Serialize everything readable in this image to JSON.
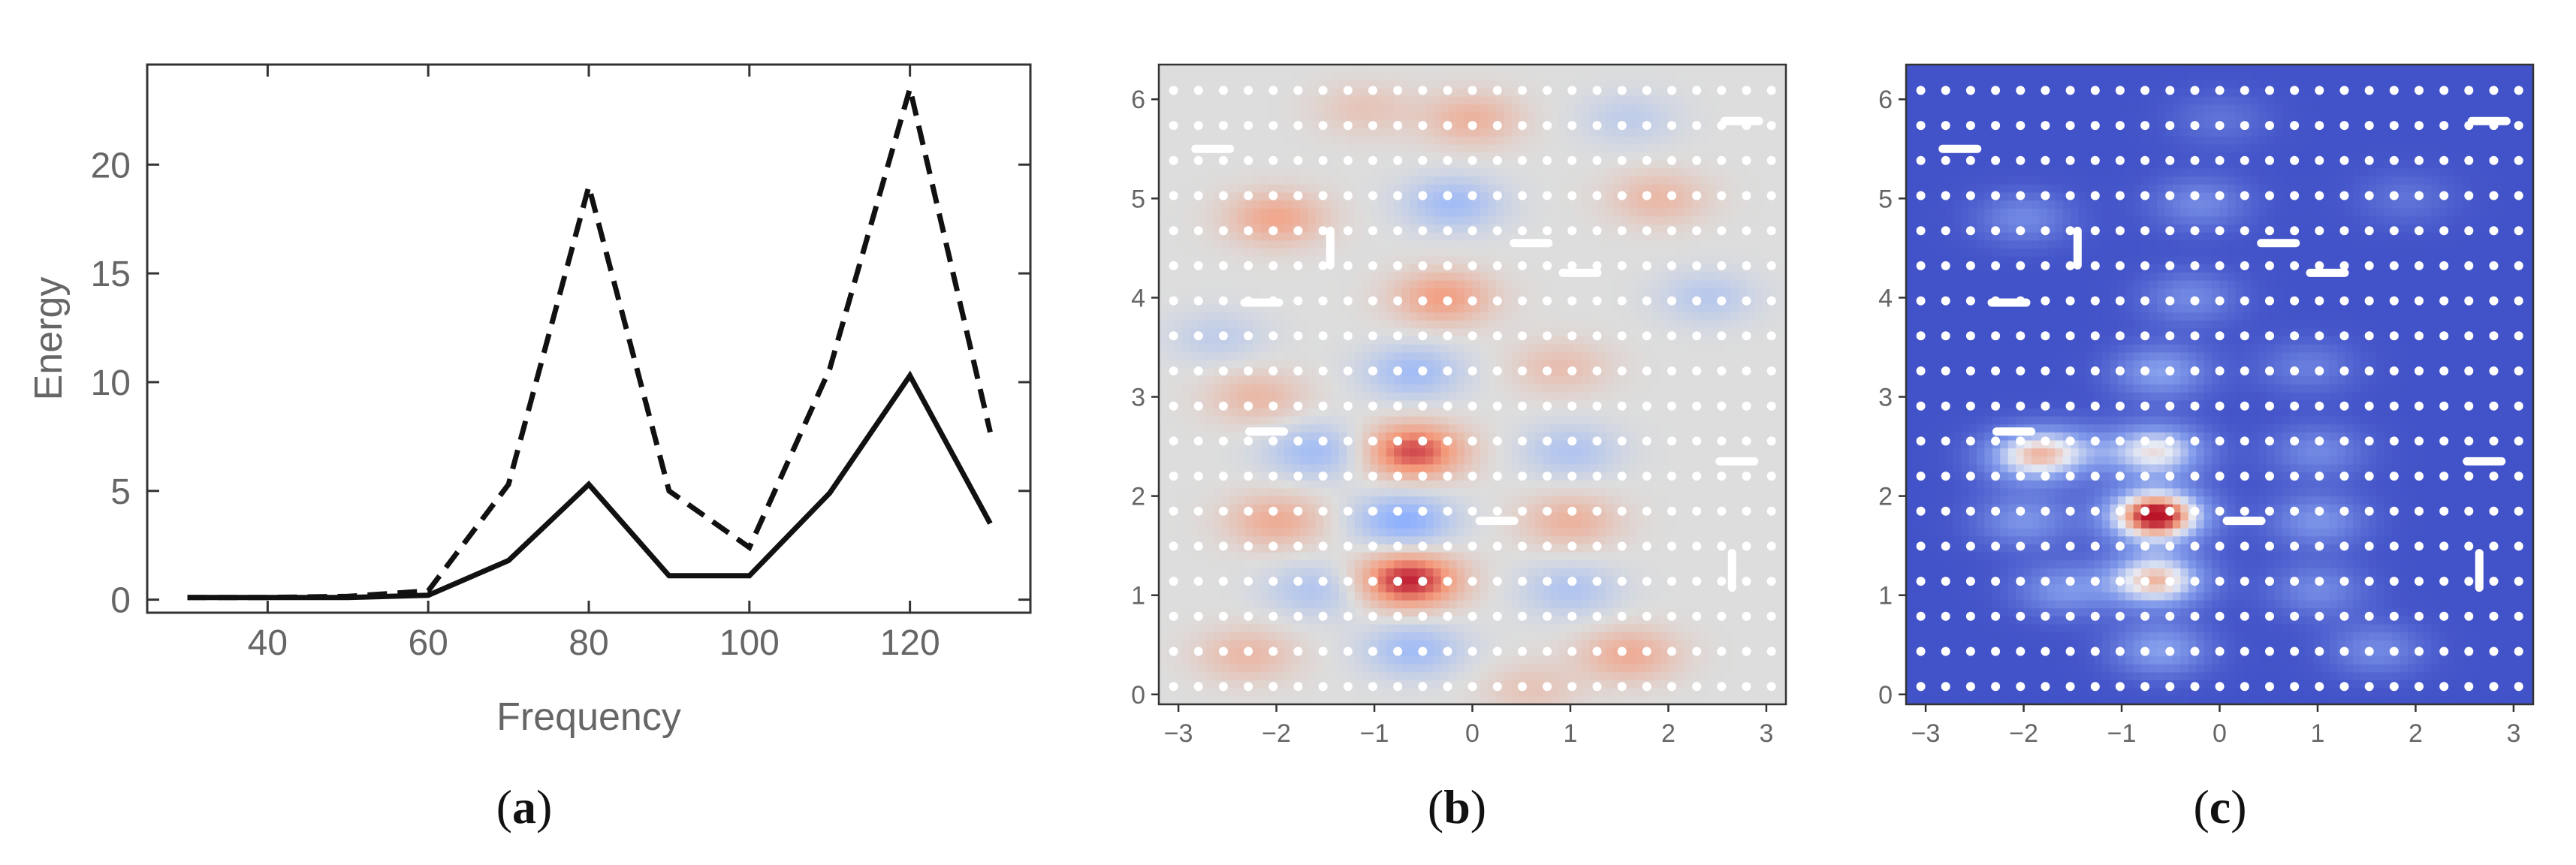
{
  "chart_data": [
    {
      "type": "line",
      "panel": "a",
      "caption": "(a)",
      "caption_letter": "a",
      "xlabel": "Frequency",
      "ylabel": "Energy",
      "xlim": [
        25,
        135
      ],
      "ylim": [
        -0.6,
        24.6
      ],
      "x_ticks": [
        40,
        60,
        80,
        100,
        120
      ],
      "y_ticks": [
        0,
        5,
        10,
        15,
        20
      ],
      "grid": false,
      "x": [
        30,
        40,
        50,
        60,
        70,
        80,
        90,
        100,
        110,
        120,
        130
      ],
      "series": [
        {
          "name": "solid",
          "style": "solid",
          "values": [
            0.1,
            0.1,
            0.1,
            0.2,
            1.8,
            5.3,
            1.1,
            1.1,
            4.9,
            10.3,
            3.5
          ]
        },
        {
          "name": "dashed",
          "style": "dashed",
          "values": [
            0.1,
            0.1,
            0.15,
            0.4,
            5.3,
            19.0,
            5.0,
            2.4,
            10.6,
            23.5,
            7.7
          ]
        }
      ]
    },
    {
      "type": "heatmap",
      "panel": "b",
      "caption": "(b)",
      "caption_letter": "b",
      "colormap": "diverging blue-white-red",
      "xlim": [
        -3.2,
        3.2
      ],
      "ylim": [
        -0.1,
        6.35
      ],
      "x_ticks": [
        -3,
        -2,
        -1,
        0,
        1,
        2,
        3
      ],
      "y_ticks": [
        0,
        1,
        2,
        3,
        4,
        5,
        6
      ],
      "blobs": [
        [
          -0.65,
          1.15,
          1.0
        ],
        [
          -0.6,
          2.45,
          0.85
        ],
        [
          -0.7,
          1.75,
          -0.55
        ],
        [
          -0.6,
          0.45,
          -0.4
        ],
        [
          -2.0,
          1.75,
          0.4
        ],
        [
          -2.2,
          3.0,
          0.3
        ],
        [
          -2.0,
          4.8,
          0.45
        ],
        [
          -0.3,
          4.0,
          0.5
        ],
        [
          -0.6,
          3.25,
          -0.4
        ],
        [
          -1.6,
          2.45,
          -0.4
        ],
        [
          -1.6,
          1.05,
          -0.3
        ],
        [
          1.0,
          1.75,
          0.35
        ],
        [
          1.0,
          1.05,
          -0.3
        ],
        [
          1.6,
          0.4,
          0.4
        ],
        [
          1.0,
          2.45,
          -0.3
        ],
        [
          0.9,
          3.3,
          0.25
        ],
        [
          0.0,
          5.8,
          0.35
        ],
        [
          -0.2,
          4.95,
          -0.4
        ],
        [
          1.9,
          5.0,
          0.3
        ],
        [
          2.4,
          4.0,
          -0.25
        ],
        [
          -2.3,
          0.4,
          0.3
        ],
        [
          -2.6,
          3.6,
          -0.2
        ],
        [
          0.6,
          0.05,
          0.2
        ],
        [
          1.6,
          5.8,
          -0.2
        ],
        [
          -1.1,
          5.9,
          0.2
        ]
      ],
      "dash_marks": [
        [
          -2.65,
          5.5,
          "h"
        ],
        [
          -1.45,
          4.5,
          "v"
        ],
        [
          -2.15,
          3.95,
          "h"
        ],
        [
          -2.1,
          2.65,
          "h"
        ],
        [
          0.6,
          4.55,
          "h"
        ],
        [
          1.1,
          4.25,
          "h"
        ],
        [
          0.25,
          1.75,
          "h"
        ],
        [
          2.75,
          5.78,
          "h"
        ],
        [
          2.7,
          2.35,
          "h"
        ],
        [
          2.65,
          1.25,
          "v"
        ]
      ]
    },
    {
      "type": "heatmap",
      "panel": "c",
      "caption": "(c)",
      "caption_letter": "c",
      "colormap": "sequential blue-white-red",
      "xlim": [
        -3.2,
        3.2
      ],
      "ylim": [
        -0.1,
        6.35
      ],
      "x_ticks": [
        -3,
        -2,
        -1,
        0,
        1,
        2,
        3
      ],
      "y_ticks": [
        0,
        1,
        2,
        3,
        4,
        5,
        6
      ],
      "blobs": [
        [
          -0.65,
          1.8,
          1.0
        ],
        [
          -0.65,
          1.15,
          0.7
        ],
        [
          -0.65,
          2.45,
          0.6
        ],
        [
          -1.95,
          2.4,
          0.5
        ],
        [
          -0.6,
          0.45,
          0.35
        ],
        [
          -0.6,
          3.25,
          0.35
        ],
        [
          -1.6,
          2.45,
          0.3
        ],
        [
          -1.6,
          1.05,
          0.3
        ],
        [
          1.0,
          1.75,
          0.3
        ],
        [
          1.0,
          1.05,
          0.25
        ],
        [
          1.6,
          0.45,
          0.25
        ],
        [
          1.0,
          2.45,
          0.25
        ],
        [
          -0.2,
          4.95,
          0.25
        ],
        [
          -0.3,
          4.0,
          0.25
        ],
        [
          -2.0,
          4.8,
          0.25
        ],
        [
          0.9,
          3.3,
          0.2
        ],
        [
          -2.0,
          1.75,
          0.3
        ],
        [
          1.9,
          5.0,
          0.15
        ],
        [
          0.0,
          5.8,
          0.15
        ]
      ],
      "dash_marks": [
        [
          -2.65,
          5.5,
          "h"
        ],
        [
          -1.45,
          4.5,
          "v"
        ],
        [
          -2.15,
          3.95,
          "h"
        ],
        [
          -2.1,
          2.65,
          "h"
        ],
        [
          0.6,
          4.55,
          "h"
        ],
        [
          1.1,
          4.25,
          "h"
        ],
        [
          0.25,
          1.75,
          "h"
        ],
        [
          2.75,
          5.78,
          "h"
        ],
        [
          2.7,
          2.35,
          "h"
        ],
        [
          2.65,
          1.25,
          "v"
        ]
      ]
    }
  ]
}
